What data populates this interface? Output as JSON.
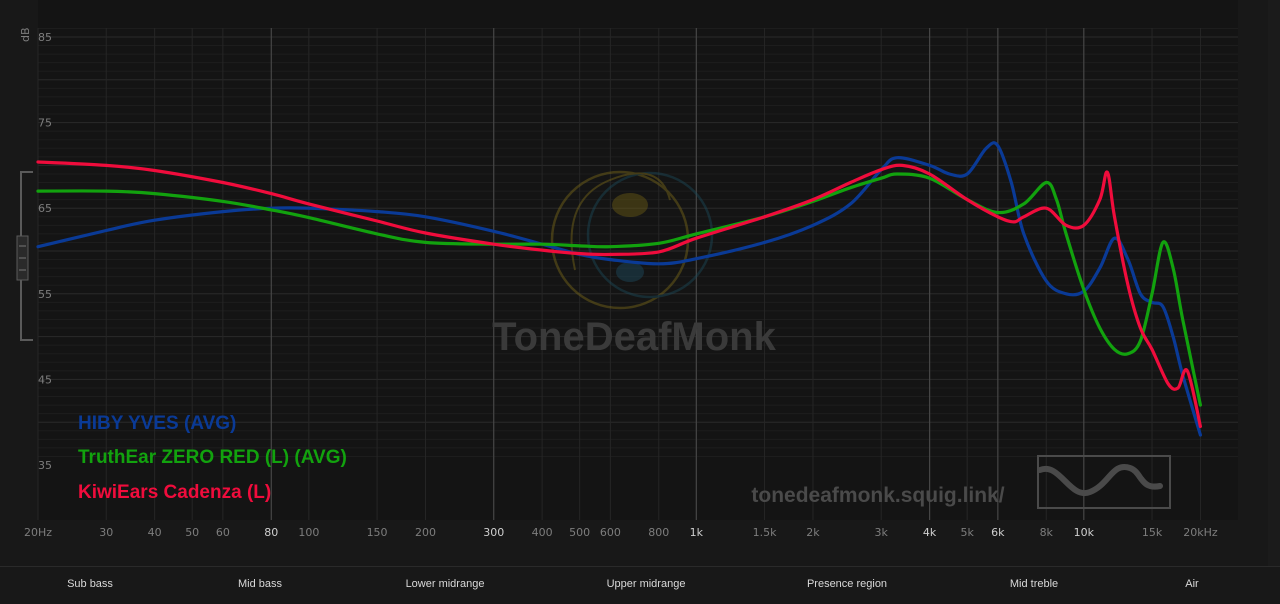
{
  "chart_data": {
    "type": "line",
    "ylabel": "dB",
    "ylim": [
      30,
      87
    ],
    "xlim": [
      20,
      25000
    ],
    "x_scale": "log",
    "grid": true,
    "y_ticks": [
      {
        "value": 85,
        "label": "85"
      },
      {
        "value": 75,
        "label": "75"
      },
      {
        "value": 65,
        "label": "65"
      },
      {
        "value": 55,
        "label": "55"
      },
      {
        "value": 45,
        "label": "45"
      },
      {
        "value": 35,
        "label": "35"
      }
    ],
    "x_ticks": [
      {
        "value": 20,
        "label": "20Hz"
      },
      {
        "value": 30,
        "label": "30"
      },
      {
        "value": 40,
        "label": "40"
      },
      {
        "value": 50,
        "label": "50"
      },
      {
        "value": 60,
        "label": "60"
      },
      {
        "value": 80,
        "label": "80",
        "major": true
      },
      {
        "value": 100,
        "label": "100"
      },
      {
        "value": 150,
        "label": "150"
      },
      {
        "value": 200,
        "label": "200"
      },
      {
        "value": 300,
        "label": "300",
        "major": true
      },
      {
        "value": 400,
        "label": "400"
      },
      {
        "value": 500,
        "label": "500"
      },
      {
        "value": 600,
        "label": "600"
      },
      {
        "value": 800,
        "label": "800"
      },
      {
        "value": 1000,
        "label": "1k",
        "major": true
      },
      {
        "value": 1500,
        "label": "1.5k"
      },
      {
        "value": 2000,
        "label": "2k"
      },
      {
        "value": 3000,
        "label": "3k"
      },
      {
        "value": 4000,
        "label": "4k",
        "major": true
      },
      {
        "value": 5000,
        "label": "5k"
      },
      {
        "value": 6000,
        "label": "6k",
        "major": true
      },
      {
        "value": 8000,
        "label": "8k"
      },
      {
        "value": 10000,
        "label": "10k",
        "major": true
      },
      {
        "value": 15000,
        "label": "15k"
      },
      {
        "value": 20000,
        "label": "20kHz"
      }
    ],
    "series": [
      {
        "name": "HIBY YVES (AVG)",
        "color": "#0a3a96",
        "points": [
          [
            20,
            60.5
          ],
          [
            30,
            62.4
          ],
          [
            40,
            63.6
          ],
          [
            60,
            64.6
          ],
          [
            80,
            65.0
          ],
          [
            100,
            65.0
          ],
          [
            150,
            64.6
          ],
          [
            200,
            64.0
          ],
          [
            300,
            62.3
          ],
          [
            400,
            60.8
          ],
          [
            500,
            59.6
          ],
          [
            600,
            59.0
          ],
          [
            800,
            58.5
          ],
          [
            1000,
            59.1
          ],
          [
            1500,
            61.0
          ],
          [
            2000,
            63.0
          ],
          [
            2500,
            65.5
          ],
          [
            3000,
            69.5
          ],
          [
            3300,
            70.9
          ],
          [
            4000,
            70.0
          ],
          [
            4500,
            69.0
          ],
          [
            5000,
            69.0
          ],
          [
            5600,
            72.0
          ],
          [
            6000,
            72.3
          ],
          [
            6500,
            68.0
          ],
          [
            7000,
            62.0
          ],
          [
            8000,
            56.5
          ],
          [
            9000,
            55.0
          ],
          [
            10000,
            55.3
          ],
          [
            11000,
            58.0
          ],
          [
            12000,
            61.5
          ],
          [
            13000,
            59.0
          ],
          [
            14000,
            55.0
          ],
          [
            15000,
            54.0
          ],
          [
            16000,
            53.5
          ],
          [
            17000,
            50.0
          ],
          [
            18000,
            45.5
          ],
          [
            20000,
            38.5
          ]
        ]
      },
      {
        "name": "TruthEar ZERO RED (L) (AVG)",
        "color": "#12a20e",
        "points": [
          [
            20,
            67.0
          ],
          [
            30,
            67.0
          ],
          [
            40,
            66.7
          ],
          [
            60,
            65.8
          ],
          [
            80,
            64.8
          ],
          [
            100,
            63.9
          ],
          [
            150,
            62.0
          ],
          [
            200,
            61.0
          ],
          [
            300,
            60.8
          ],
          [
            400,
            60.8
          ],
          [
            500,
            60.6
          ],
          [
            600,
            60.5
          ],
          [
            800,
            60.9
          ],
          [
            1000,
            62.0
          ],
          [
            1500,
            64.0
          ],
          [
            2000,
            65.8
          ],
          [
            2500,
            67.4
          ],
          [
            3000,
            68.5
          ],
          [
            3300,
            69.0
          ],
          [
            4000,
            68.5
          ],
          [
            5000,
            66.0
          ],
          [
            6000,
            64.5
          ],
          [
            7000,
            65.5
          ],
          [
            8000,
            68.0
          ],
          [
            8500,
            66.0
          ],
          [
            9000,
            62.0
          ],
          [
            10000,
            55.5
          ],
          [
            11000,
            51.0
          ],
          [
            12000,
            48.5
          ],
          [
            13000,
            48.0
          ],
          [
            14000,
            49.5
          ],
          [
            15000,
            55.0
          ],
          [
            16000,
            61.0
          ],
          [
            17000,
            58.0
          ],
          [
            18000,
            52.0
          ],
          [
            20000,
            42.0
          ]
        ]
      },
      {
        "name": "KiwiEars Cadenza (L)",
        "color": "#f00c3c",
        "points": [
          [
            20,
            70.4
          ],
          [
            30,
            70.0
          ],
          [
            40,
            69.4
          ],
          [
            60,
            68.0
          ],
          [
            80,
            66.7
          ],
          [
            100,
            65.5
          ],
          [
            150,
            63.5
          ],
          [
            200,
            62.1
          ],
          [
            300,
            60.8
          ],
          [
            400,
            60.1
          ],
          [
            500,
            59.7
          ],
          [
            600,
            59.6
          ],
          [
            800,
            59.9
          ],
          [
            1000,
            61.5
          ],
          [
            1500,
            64.0
          ],
          [
            2000,
            66.0
          ],
          [
            2500,
            68.0
          ],
          [
            3000,
            69.5
          ],
          [
            3400,
            70.0
          ],
          [
            4000,
            69.0
          ],
          [
            5000,
            66.0
          ],
          [
            6000,
            64.0
          ],
          [
            6600,
            63.4
          ],
          [
            7000,
            64.0
          ],
          [
            8000,
            65.0
          ],
          [
            9000,
            63.0
          ],
          [
            10000,
            63.0
          ],
          [
            11000,
            66.0
          ],
          [
            11500,
            69.2
          ],
          [
            12000,
            64.0
          ],
          [
            13000,
            56.0
          ],
          [
            14000,
            51.0
          ],
          [
            15000,
            48.5
          ],
          [
            16500,
            44.5
          ],
          [
            17500,
            44.0
          ],
          [
            18500,
            46.0
          ],
          [
            20000,
            39.5
          ]
        ]
      }
    ]
  },
  "watermark": {
    "brand": "ToneDeafMonk",
    "url": "tonedeafmonk.squig.link/"
  },
  "regions": [
    "Sub bass",
    "Mid bass",
    "Lower midrange",
    "Upper midrange",
    "Presence region",
    "Mid treble",
    "Air"
  ],
  "colors": {
    "background": "#181818",
    "grid_minor": "#232323",
    "grid_major": "#464646"
  }
}
